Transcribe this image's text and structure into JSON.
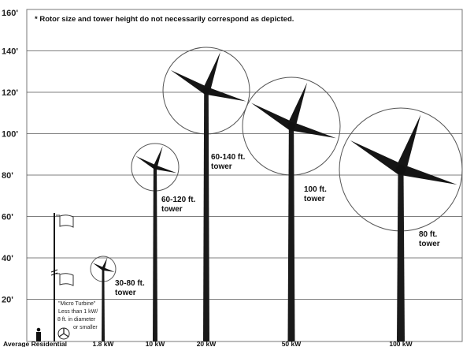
{
  "note": "* Rotor size and tower height do not necessarily correspond as depicted.",
  "y_axis_labels": [
    "160'",
    "140'",
    "120'",
    "100'",
    "80'",
    "60'",
    "40'",
    "20'"
  ],
  "y_axis_values": [
    160,
    140,
    120,
    100,
    80,
    60,
    40,
    20
  ],
  "micro_turbine": {
    "lines": [
      "\"Micro Turbine\"",
      "Less than 1 kW/",
      "8 ft. in diameter",
      "or smaller"
    ]
  },
  "turbines": [
    {
      "size": "1.8 kW",
      "tower_lines": [
        "30-80 ft.",
        "tower"
      ]
    },
    {
      "size": "10 kW",
      "tower_lines": [
        "60-120 ft.",
        "tower"
      ]
    },
    {
      "size": "20 kW",
      "tower_lines": [
        "60-140 ft.",
        "tower"
      ]
    },
    {
      "size": "50 kW",
      "tower_lines": [
        "100 ft.",
        "tower"
      ]
    },
    {
      "size": "100 kW",
      "tower_lines": [
        "80 ft.",
        "tower"
      ]
    }
  ],
  "residential_label": "Average Residential",
  "colors": {
    "tower": "#1a1a1a",
    "grid": "#555555"
  }
}
